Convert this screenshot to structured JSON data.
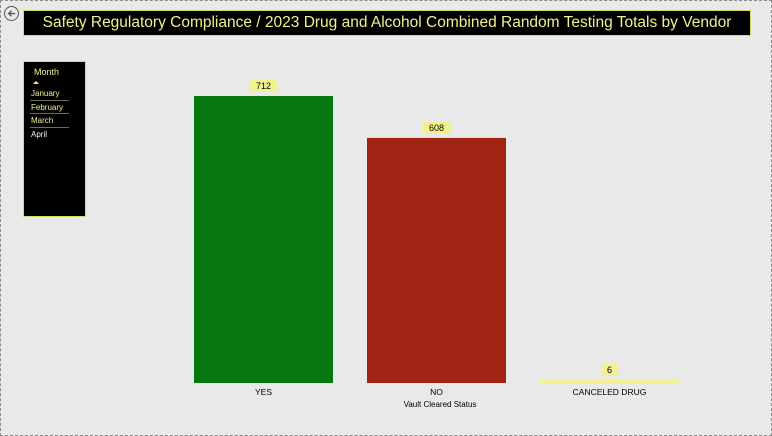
{
  "title": "Safety Regulatory Compliance / 2023 Drug and Alcohol Combined Random Testing Totals by Vendor",
  "back_icon": "back-arrow-icon",
  "slicer": {
    "header": "Month",
    "items": [
      "January",
      "February",
      "March",
      "April"
    ]
  },
  "colors": {
    "background": "#e9e9e9",
    "title_text": "#f3f08e",
    "label_box": "#f3f08e",
    "yes": "#07770f",
    "no": "#a02414",
    "canceled": "#f3f08e"
  },
  "chart_data": {
    "type": "bar",
    "categories": [
      "YES",
      "NO",
      "CANCELED DRUG"
    ],
    "values": [
      712,
      608,
      6
    ],
    "xlabel": "Vault Cleared Status",
    "ylabel": "",
    "data_labels": [
      "712",
      "608",
      "6"
    ]
  }
}
